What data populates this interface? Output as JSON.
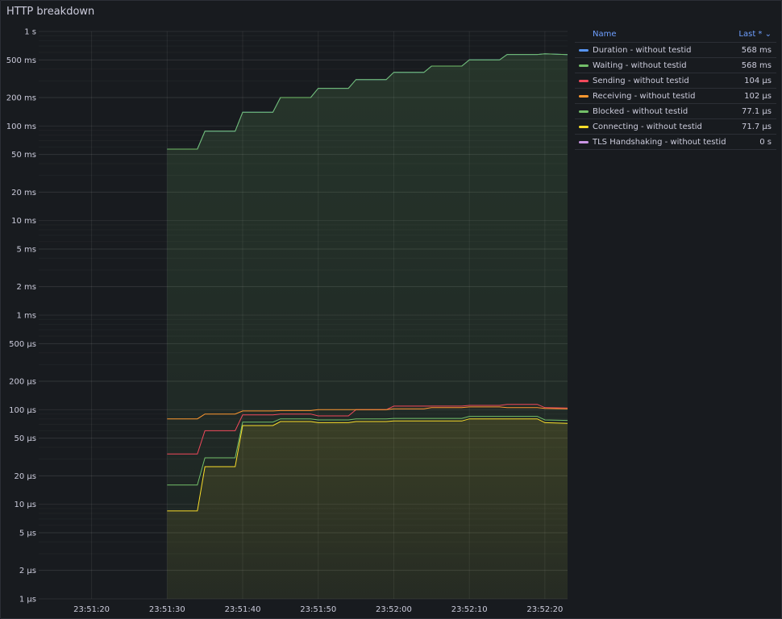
{
  "panel": {
    "title": "HTTP breakdown"
  },
  "legend": {
    "name_header": "Name",
    "last_header": "Last *",
    "sort_icon": "chevron-down-icon"
  },
  "chart_data": {
    "type": "line",
    "title": "HTTP breakdown",
    "y_scale": "log",
    "y_unit": "seconds",
    "ylim": [
      1e-06,
      1
    ],
    "y_ticks": [
      {
        "v": 1,
        "label": "1 s"
      },
      {
        "v": 0.5,
        "label": "500 ms"
      },
      {
        "v": 0.2,
        "label": "200 ms"
      },
      {
        "v": 0.1,
        "label": "100 ms"
      },
      {
        "v": 0.05,
        "label": "50 ms"
      },
      {
        "v": 0.02,
        "label": "20 ms"
      },
      {
        "v": 0.01,
        "label": "10 ms"
      },
      {
        "v": 0.005,
        "label": "5 ms"
      },
      {
        "v": 0.002,
        "label": "2 ms"
      },
      {
        "v": 0.001,
        "label": "1 ms"
      },
      {
        "v": 0.0005,
        "label": "500 µs"
      },
      {
        "v": 0.0002,
        "label": "200 µs"
      },
      {
        "v": 0.0001,
        "label": "100 µs"
      },
      {
        "v": 5e-05,
        "label": "50 µs"
      },
      {
        "v": 2e-05,
        "label": "20 µs"
      },
      {
        "v": 1e-05,
        "label": "10 µs"
      },
      {
        "v": 5e-06,
        "label": "5 µs"
      },
      {
        "v": 2e-06,
        "label": "2 µs"
      },
      {
        "v": 1e-06,
        "label": "1 µs"
      }
    ],
    "x_ticks": [
      "23:51:20",
      "23:51:30",
      "23:51:40",
      "23:51:50",
      "23:52:00",
      "23:52:10",
      "23:52:20"
    ],
    "xlim": [
      "23:51:13",
      "23:52:23"
    ],
    "x_tick_times": [
      "23:51:20",
      "23:51:30",
      "23:51:40",
      "23:51:50",
      "23:52:00",
      "23:52:10",
      "23:52:20"
    ],
    "grid": true,
    "legend_position": "right",
    "series": [
      {
        "name": "Duration - without testid",
        "color": "#5794f2",
        "last": "568 ms",
        "fill": false,
        "x": [
          "23:51:30",
          "23:51:34",
          "23:51:35",
          "23:51:39",
          "23:51:40",
          "23:51:44",
          "23:51:45",
          "23:51:49",
          "23:51:50",
          "23:51:54",
          "23:51:55",
          "23:51:59",
          "23:52:00",
          "23:52:04",
          "23:52:05",
          "23:52:09",
          "23:52:10",
          "23:52:14",
          "23:52:15",
          "23:52:19",
          "23:52:20",
          "23:52:23"
        ],
        "y": [
          0.057,
          0.057,
          0.088,
          0.088,
          0.14,
          0.14,
          0.2,
          0.2,
          0.25,
          0.25,
          0.31,
          0.31,
          0.37,
          0.37,
          0.43,
          0.43,
          0.5,
          0.5,
          0.57,
          0.57,
          0.58,
          0.568
        ]
      },
      {
        "name": "Waiting - without testid",
        "color": "#73bf69",
        "last": "568 ms",
        "fill": true,
        "x": [
          "23:51:30",
          "23:51:34",
          "23:51:35",
          "23:51:39",
          "23:51:40",
          "23:51:44",
          "23:51:45",
          "23:51:49",
          "23:51:50",
          "23:51:54",
          "23:51:55",
          "23:51:59",
          "23:52:00",
          "23:52:04",
          "23:52:05",
          "23:52:09",
          "23:52:10",
          "23:52:14",
          "23:52:15",
          "23:52:19",
          "23:52:20",
          "23:52:23"
        ],
        "y": [
          0.057,
          0.057,
          0.088,
          0.088,
          0.14,
          0.14,
          0.2,
          0.2,
          0.25,
          0.25,
          0.31,
          0.31,
          0.37,
          0.37,
          0.43,
          0.43,
          0.5,
          0.5,
          0.57,
          0.57,
          0.58,
          0.568
        ]
      },
      {
        "name": "Sending - without testid",
        "color": "#f2495c",
        "last": "104 µs",
        "fill": false,
        "x": [
          "23:51:30",
          "23:51:34",
          "23:51:35",
          "23:51:39",
          "23:51:40",
          "23:51:44",
          "23:51:45",
          "23:51:49",
          "23:51:50",
          "23:51:54",
          "23:51:55",
          "23:51:59",
          "23:52:00",
          "23:52:04",
          "23:52:05",
          "23:52:09",
          "23:52:10",
          "23:52:14",
          "23:52:15",
          "23:52:19",
          "23:52:20",
          "23:52:23"
        ],
        "y": [
          3.4e-05,
          3.4e-05,
          6e-05,
          6e-05,
          8.8e-05,
          8.8e-05,
          9e-05,
          9e-05,
          8.6e-05,
          8.6e-05,
          0.0001,
          0.0001,
          0.000109,
          0.000109,
          0.000109,
          0.000109,
          0.000111,
          0.000111,
          0.000114,
          0.000114,
          0.000105,
          0.000104
        ]
      },
      {
        "name": "Receiving - without testid",
        "color": "#ff9830",
        "last": "102 µs",
        "fill": false,
        "x": [
          "23:51:30",
          "23:51:34",
          "23:51:35",
          "23:51:39",
          "23:51:40",
          "23:51:44",
          "23:51:45",
          "23:51:49",
          "23:51:50",
          "23:51:54",
          "23:51:55",
          "23:51:59",
          "23:52:00",
          "23:52:04",
          "23:52:05",
          "23:52:09",
          "23:52:10",
          "23:52:14",
          "23:52:15",
          "23:52:19",
          "23:52:20",
          "23:52:23"
        ],
        "y": [
          8e-05,
          8e-05,
          9e-05,
          9e-05,
          9.7e-05,
          9.7e-05,
          9.8e-05,
          9.8e-05,
          0.0001,
          0.0001,
          0.0001,
          0.0001,
          0.000102,
          0.000102,
          0.000105,
          0.000105,
          0.000107,
          0.000107,
          0.000105,
          0.000105,
          0.000103,
          0.000102
        ]
      },
      {
        "name": "Blocked - without testid",
        "color": "#73bf69",
        "last": "77.1 µs",
        "fill": false,
        "x": [
          "23:51:30",
          "23:51:34",
          "23:51:35",
          "23:51:39",
          "23:51:40",
          "23:51:44",
          "23:51:45",
          "23:51:49",
          "23:51:50",
          "23:51:54",
          "23:51:55",
          "23:51:59",
          "23:52:00",
          "23:52:04",
          "23:52:05",
          "23:52:09",
          "23:52:10",
          "23:52:14",
          "23:52:15",
          "23:52:19",
          "23:52:20",
          "23:52:23"
        ],
        "y": [
          1.6e-05,
          1.6e-05,
          3.1e-05,
          3.1e-05,
          7.4e-05,
          7.4e-05,
          8e-05,
          8e-05,
          7.8e-05,
          7.8e-05,
          8e-05,
          8e-05,
          8.1e-05,
          8.1e-05,
          8.1e-05,
          8.1e-05,
          8.5e-05,
          8.5e-05,
          8.5e-05,
          8.5e-05,
          7.8e-05,
          7.71e-05
        ]
      },
      {
        "name": "Connecting - without testid",
        "color": "#fade2a",
        "last": "71.7 µs",
        "fill": true,
        "x": [
          "23:51:30",
          "23:51:34",
          "23:51:35",
          "23:51:39",
          "23:51:40",
          "23:51:44",
          "23:51:45",
          "23:51:49",
          "23:51:50",
          "23:51:54",
          "23:51:55",
          "23:51:59",
          "23:52:00",
          "23:52:04",
          "23:52:05",
          "23:52:09",
          "23:52:10",
          "23:52:14",
          "23:52:15",
          "23:52:19",
          "23:52:20",
          "23:52:23"
        ],
        "y": [
          8.5e-06,
          8.5e-06,
          2.5e-05,
          2.5e-05,
          6.8e-05,
          6.8e-05,
          7.5e-05,
          7.5e-05,
          7.3e-05,
          7.3e-05,
          7.5e-05,
          7.5e-05,
          7.6e-05,
          7.6e-05,
          7.6e-05,
          7.6e-05,
          8e-05,
          8e-05,
          8e-05,
          8e-05,
          7.3e-05,
          7.17e-05
        ]
      },
      {
        "name": "TLS Handshaking - without testid",
        "color": "#ca95e5",
        "last": "0 s",
        "fill": false,
        "x": [],
        "y": []
      }
    ]
  }
}
